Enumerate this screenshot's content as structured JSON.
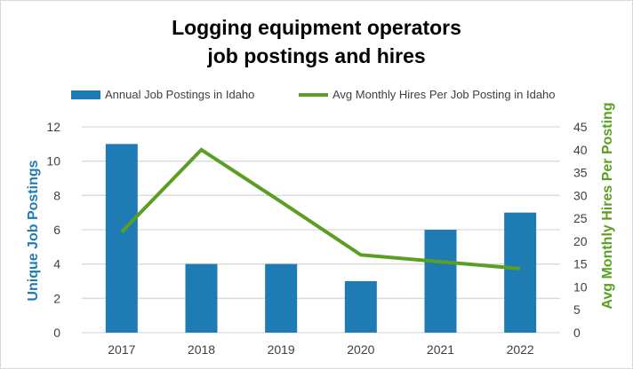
{
  "chart_data": {
    "type": "bar+line",
    "title_line1": "Logging equipment operators",
    "title_line2": "job postings and hires",
    "categories": [
      "2017",
      "2018",
      "2019",
      "2020",
      "2021",
      "2022"
    ],
    "series": [
      {
        "name": "Annual Job Postings in Idaho",
        "type": "bar",
        "axis": "left",
        "color": "#1f7bb3",
        "values": [
          11,
          4,
          4,
          3,
          6,
          7
        ]
      },
      {
        "name": "Avg Monthly Hires Per Job Posting in Idaho",
        "type": "line",
        "axis": "right",
        "color": "#5a9e23",
        "values": [
          22,
          40,
          28.6,
          17,
          15.5,
          14
        ]
      }
    ],
    "ylabel": "Unique Job Postings",
    "y2label": "Avg Monthly Hires Per Posting",
    "ylim": [
      0,
      12
    ],
    "y2lim": [
      0,
      45
    ],
    "yticks": [
      "0",
      "2",
      "4",
      "6",
      "8",
      "10",
      "12"
    ],
    "y2ticks": [
      "0",
      "5",
      "10",
      "15",
      "20",
      "25",
      "30",
      "35",
      "40",
      "45"
    ],
    "ylabel_color": "#1f7bb3",
    "y2label_color": "#5a9e23",
    "grid": true,
    "legend_position": "top"
  }
}
